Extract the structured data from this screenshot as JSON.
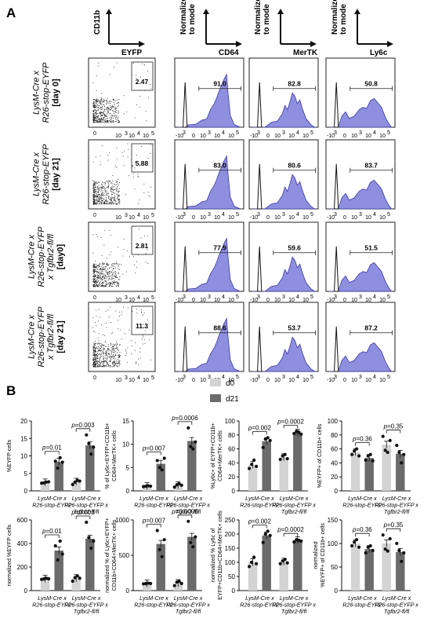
{
  "panels": {
    "a": "A",
    "b": "B"
  },
  "column_headers": [
    {
      "ylabel": "CD11b",
      "xlabel": "EYFP"
    },
    {
      "ylabel": "Normalized\nto mode",
      "xlabel": "CD64"
    },
    {
      "ylabel": "Normalized\nto mode",
      "xlabel": "MerTK"
    },
    {
      "ylabel": "Normalized\nto mode",
      "xlabel": "Ly6c"
    }
  ],
  "row_labels": [
    [
      "LysM-Cre x",
      "R26-stop-EYFP",
      "[day 0]"
    ],
    [
      "LysM-Cre x",
      "R26-stop-EYFP",
      "[day 21]"
    ],
    [
      "LysM-Cre x",
      "R26-stop-EYFP",
      "x Tgfbr2-fl/fl",
      "[day0]"
    ],
    [
      "LysM-Cre x",
      "R26-stop-EYFP",
      "x Tgfbr2-fl/fl",
      "[day 21]"
    ]
  ],
  "gate_values": [
    "2.47",
    "5.88",
    "2.81",
    "11.3"
  ],
  "histogram_values": [
    [
      "91.0",
      "82.8",
      "50.8"
    ],
    [
      "83.0",
      "80.6",
      "83.7"
    ],
    [
      "77.9",
      "59.6",
      "51.5"
    ],
    [
      "88.6",
      "53.7",
      "87.2"
    ]
  ],
  "axis_ticks": {
    "flow_x": [
      "0",
      "10",
      "3",
      "10",
      "4",
      "10",
      "5"
    ],
    "hist_x": [
      "-10",
      "3",
      "0",
      "10",
      "3",
      "10",
      "4",
      "10",
      "5"
    ]
  },
  "legend": {
    "items": [
      {
        "label": "d0",
        "color": "#d3d3d3"
      },
      {
        "label": "d21",
        "color": "#6b6b6b"
      }
    ]
  },
  "group_labels": [
    [
      "LysM-Cre x",
      "R26-stop-EYFP"
    ],
    [
      "LysM-Cre x",
      "R26-stop-EYFP x",
      "Tgfbr2-fl/fl"
    ]
  ],
  "chart_data": [
    {
      "type": "bar",
      "ylabel": "%EYFP cells",
      "ylim": [
        0,
        20
      ],
      "yticks": [
        "0",
        "5",
        "10",
        "15",
        "20"
      ],
      "categories": [
        "LysM-Cre x R26-stop-EYFP",
        "LysM-Cre x R26-stop-EYFP x Tgfbr2-fl/fl"
      ],
      "series": [
        {
          "name": "d0",
          "values": [
            2.4,
            2.6
          ]
        },
        {
          "name": "d21",
          "values": [
            8.3,
            13.0
          ]
        }
      ],
      "points": [
        [
          [
            2.2,
            2.3,
            2.5,
            2.6
          ],
          [
            8.5,
            6.5,
            9.5,
            8.2
          ]
        ],
        [
          [
            1.8,
            2.5,
            3.0,
            2.8
          ],
          [
            16.0,
            13.5,
            10.5,
            12.5
          ]
        ]
      ],
      "pvalues": [
        "p=0.01",
        "p=0.003"
      ]
    },
    {
      "type": "bar",
      "ylabel": "% of Ly6c+EYFP+CD11b+\nCD64+MerTK+ cells",
      "ylim": [
        0,
        15
      ],
      "yticks": [
        "0",
        "5",
        "10",
        "15"
      ],
      "categories": [
        "LysM-Cre x R26-stop-EYFP",
        "LysM-Cre x R26-stop-EYFP x Tgfbr2-fl/fl"
      ],
      "series": [
        {
          "name": "d0",
          "values": [
            1.0,
            1.2
          ]
        },
        {
          "name": "d21",
          "values": [
            5.8,
            10.7
          ]
        }
      ],
      "points": [
        [
          [
            0.9,
            1.0,
            1.1,
            1.0
          ],
          [
            6.5,
            5.0,
            4.5,
            7.0
          ]
        ],
        [
          [
            0.8,
            1.3,
            1.5,
            1.2
          ],
          [
            13.5,
            9.5,
            9.0,
            10.5
          ]
        ]
      ],
      "pvalues": [
        "p=0.007",
        "p=0.0006"
      ]
    },
    {
      "type": "bar",
      "ylabel": "%Ly6c+ of EYFP+CD11b+\nCD64+MerTK+ cells",
      "ylim": [
        0,
        100
      ],
      "yticks": [
        "0",
        "20",
        "40",
        "60",
        "80",
        "100"
      ],
      "categories": [
        "LysM-Cre x R26-stop-EYFP",
        "LysM-Cre x R26-stop-EYFP x Tgfbr2-fl/fl"
      ],
      "series": [
        {
          "name": "d0",
          "values": [
            37,
            48
          ]
        },
        {
          "name": "d21",
          "values": [
            71,
            83
          ]
        }
      ],
      "points": [
        [
          [
            32,
            38,
            44,
            35
          ],
          [
            62,
            74,
            76,
            72
          ]
        ],
        [
          [
            45,
            50,
            52,
            46
          ],
          [
            82,
            85,
            84,
            81
          ]
        ]
      ],
      "pvalues": [
        "p=0.002",
        "p=0.0002"
      ]
    },
    {
      "type": "bar",
      "ylabel": "%EYFP+ of CD11b+ cells",
      "ylim": [
        0,
        100
      ],
      "yticks": [
        "0",
        "20",
        "40",
        "60",
        "80",
        "100"
      ],
      "categories": [
        "LysM-Cre x R26-stop-EYFP",
        "LysM-Cre x R26-stop-EYFP x Tgfbr2-fl/fl"
      ],
      "series": [
        {
          "name": "d0",
          "values": [
            55,
            66
          ]
        },
        {
          "name": "d21",
          "values": [
            47,
            53
          ]
        }
      ],
      "points": [
        [
          [
            52,
            57,
            60,
            50
          ],
          [
            44,
            50,
            52,
            43
          ]
        ],
        [
          [
            78,
            58,
            55,
            72
          ],
          [
            65,
            55,
            40,
            52
          ]
        ]
      ],
      "pvalues": [
        "p=0.36",
        "p=0.35"
      ]
    },
    {
      "type": "bar",
      "ylabel": "normalized %EYFP cells",
      "ylim": [
        0,
        600
      ],
      "yticks": [
        "0",
        "200",
        "400",
        "600"
      ],
      "categories": [
        "LysM-Cre x R26-stop-EYFP",
        "LysM-Cre x R26-stop-EYFP x Tgfbr2-fl/fl"
      ],
      "series": [
        {
          "name": "d0",
          "values": [
            100,
            105
          ]
        },
        {
          "name": "d21",
          "values": [
            340,
            440
          ]
        }
      ],
      "points": [
        [
          [
            95,
            100,
            105,
            100
          ],
          [
            380,
            260,
            420,
            310
          ]
        ],
        [
          [
            80,
            110,
            125,
            105
          ],
          [
            580,
            450,
            360,
            420
          ]
        ]
      ],
      "pvalues": [
        "p=0.01",
        "p=0.003"
      ]
    },
    {
      "type": "bar",
      "ylabel": "normalized % of Ly6c+EYFP+\nCD11b+CD64+MerTK+ cells",
      "ylim": [
        0,
        1000
      ],
      "yticks": [
        "0",
        "500",
        "1000"
      ],
      "categories": [
        "LysM-Cre x R26-stop-EYFP",
        "LysM-Cre x R26-stop-EYFP x Tgfbr2-fl/fl"
      ],
      "series": [
        {
          "name": "d0",
          "values": [
            100,
            105
          ]
        },
        {
          "name": "d21",
          "values": [
            660,
            760
          ]
        }
      ],
      "points": [
        [
          [
            95,
            100,
            105,
            100
          ],
          [
            850,
            580,
            480,
            720
          ]
        ],
        [
          [
            70,
            120,
            130,
            100
          ],
          [
            980,
            680,
            620,
            760
          ]
        ]
      ],
      "pvalues": [
        "p=0.007",
        "p=0.0006"
      ]
    },
    {
      "type": "bar",
      "ylabel": "normalized % Ly6c of\nEYFP+CD11b+CD64+MerTK+ cells",
      "ylim": [
        0,
        250
      ],
      "yticks": [
        "0",
        "50",
        "100",
        "150",
        "200",
        "250"
      ],
      "categories": [
        "LysM-Cre x R26-stop-EYFP",
        "LysM-Cre x R26-stop-EYFP x Tgfbr2-fl/fl"
      ],
      "series": [
        {
          "name": "d0",
          "values": [
            100,
            102
          ]
        },
        {
          "name": "d21",
          "values": [
            195,
            178
          ]
        }
      ],
      "points": [
        [
          [
            85,
            100,
            118,
            95
          ],
          [
            170,
            200,
            210,
            195
          ]
        ],
        [
          [
            95,
            105,
            110,
            98
          ],
          [
            172,
            180,
            178,
            175
          ]
        ]
      ],
      "pvalues": [
        "p=0.002",
        "p=0.0002"
      ]
    },
    {
      "type": "bar",
      "ylabel": "normalized\n%EYFP+ of CD11b+ cells",
      "ylim": [
        0,
        150
      ],
      "yticks": [
        "0",
        "50",
        "100",
        "150"
      ],
      "categories": [
        "LysM-Cre x R26-stop-EYFP",
        "LysM-Cre x R26-stop-EYFP x Tgfbr2-fl/fl"
      ],
      "series": [
        {
          "name": "d0",
          "values": [
            100,
            100
          ]
        },
        {
          "name": "d21",
          "values": [
            88,
            82
          ]
        }
      ],
      "points": [
        [
          [
            95,
            103,
            108,
            92
          ],
          [
            80,
            92,
            95,
            85
          ]
        ],
        [
          [
            118,
            88,
            84,
            110
          ],
          [
            100,
            85,
            62,
            80
          ]
        ]
      ],
      "pvalues": [
        "p=0.36",
        "p=0.35"
      ]
    }
  ]
}
